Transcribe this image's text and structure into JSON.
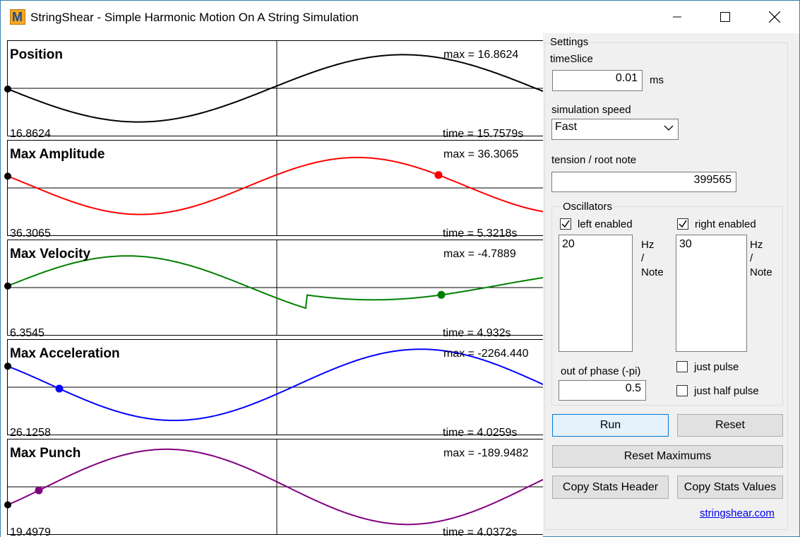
{
  "window": {
    "title": "StringShear - Simple Harmonic Motion On A String Simulation",
    "app_icon_letter": "M"
  },
  "plots": [
    {
      "title": "Position",
      "max": "max = 16.8624",
      "min": "16.8624",
      "time": "time = 15.7579s",
      "color": "#000000"
    },
    {
      "title": "Max Amplitude",
      "max": "max = 36.3065",
      "min": "36.3065",
      "time": "time = 5.3218s",
      "color": "#ff0000"
    },
    {
      "title": "Max Velocity",
      "max": "max = -4.7889",
      "min": "6.3545",
      "time": "time = 4.932s",
      "color": "#008000"
    },
    {
      "title": "Max Acceleration",
      "max": "max = -2264.440",
      "min": "26.1258",
      "time": "time = 4.0259s",
      "color": "#0000ff"
    },
    {
      "title": "Max Punch",
      "max": "max = -189.9482",
      "min": "19.4979",
      "time": "time = 4.0372s",
      "color": "#800080"
    }
  ],
  "settings": {
    "group_label": "Settings",
    "timeslice_label": "timeSlice",
    "timeslice_value": "0.01",
    "timeslice_unit": "ms",
    "speed_label": "simulation speed",
    "speed_value": "Fast",
    "tension_label": "tension / root note",
    "tension_value": "399565",
    "oscillators": {
      "group_label": "Oscillators",
      "left_enabled_label": "left enabled",
      "left_enabled": true,
      "left_value": "20",
      "right_enabled_label": "right enabled",
      "right_enabled": true,
      "right_value": "30",
      "unit_hz": "Hz",
      "unit_slash": "/",
      "unit_note": "Note",
      "phase_label": "out of phase (-pi)",
      "phase_value": "0.5",
      "just_pulse_label": "just pulse",
      "just_pulse": false,
      "just_half_pulse_label": "just half pulse",
      "just_half_pulse": false
    },
    "run_label": "Run",
    "reset_label": "Reset",
    "reset_max_label": "Reset Maximums",
    "copy_header_label": "Copy Stats Header",
    "copy_values_label": "Copy Stats Values",
    "site_link": "stringshear.com"
  }
}
